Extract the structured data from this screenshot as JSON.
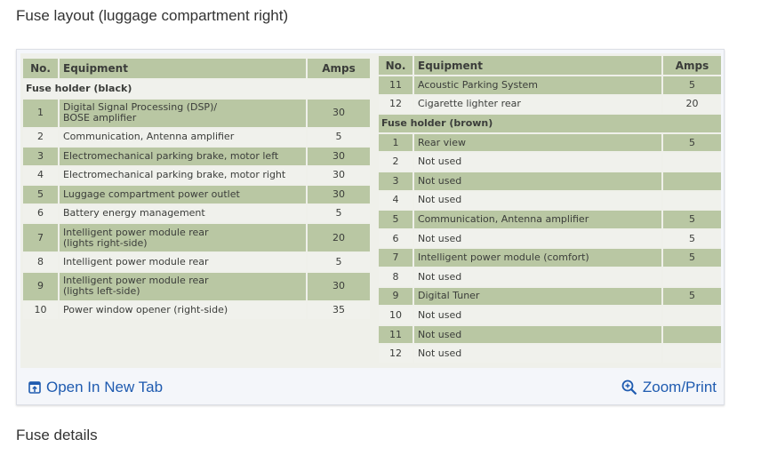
{
  "page": {
    "title": "Fuse layout (luggage compartment right)",
    "next_heading": "Fuse details"
  },
  "table_left": {
    "headers": [
      "No.",
      "Equipment",
      "Amps"
    ],
    "rows": [
      {
        "type": "group",
        "label": "Fuse holder (black)"
      },
      {
        "no": "1",
        "equipment": "Digital Signal Processing (DSP)/\nBOSE amplifier",
        "amps": "30",
        "tall": true
      },
      {
        "no": "2",
        "equipment": "Communication, Antenna amplifier",
        "amps": "5"
      },
      {
        "no": "3",
        "equipment": "Electromechanical parking brake, motor left",
        "amps": "30"
      },
      {
        "no": "4",
        "equipment": "Electromechanical parking brake, motor right",
        "amps": "30"
      },
      {
        "no": "5",
        "equipment": "Luggage compartment power outlet",
        "amps": "30"
      },
      {
        "no": "6",
        "equipment": "Battery energy management",
        "amps": "5"
      },
      {
        "no": "7",
        "equipment": "Intelligent power module rear\n(lights right-side)",
        "amps": "20",
        "tall": true
      },
      {
        "no": "8",
        "equipment": "Intelligent power module rear",
        "amps": "5"
      },
      {
        "no": "9",
        "equipment": "Intelligent power module rear\n(lights left-side)",
        "amps": "30",
        "tall": true
      },
      {
        "no": "10",
        "equipment": "Power window opener (right-side)",
        "amps": "35"
      }
    ]
  },
  "table_right": {
    "headers": [
      "No.",
      "Equipment",
      "Amps"
    ],
    "rows": [
      {
        "no": "11",
        "equipment": "Acoustic Parking System",
        "amps": "5"
      },
      {
        "no": "12",
        "equipment": "Cigarette lighter rear",
        "amps": "20"
      },
      {
        "type": "group",
        "label": "Fuse holder (brown)"
      },
      {
        "no": "1",
        "equipment": "Rear view",
        "amps": "5"
      },
      {
        "no": "2",
        "equipment": "Not used",
        "amps": ""
      },
      {
        "no": "3",
        "equipment": "Not used",
        "amps": ""
      },
      {
        "no": "4",
        "equipment": "Not used",
        "amps": ""
      },
      {
        "no": "5",
        "equipment": "Communication, Antenna amplifier",
        "amps": "5"
      },
      {
        "no": "6",
        "equipment": "Not used",
        "amps": "5"
      },
      {
        "no": "7",
        "equipment": "Intelligent power module (comfort)",
        "amps": "5"
      },
      {
        "no": "8",
        "equipment": "Not used",
        "amps": ""
      },
      {
        "no": "9",
        "equipment": "Digital Tuner",
        "amps": "5"
      },
      {
        "no": "10",
        "equipment": "Not used",
        "amps": ""
      },
      {
        "no": "11",
        "equipment": "Not used",
        "amps": ""
      },
      {
        "no": "12",
        "equipment": "Not used",
        "amps": ""
      }
    ]
  },
  "footer": {
    "open_label": "Open In New Tab",
    "open_icon": "open-new-tab-icon",
    "zoom_label": "Zoom/Print",
    "zoom_icon": "zoom-in-icon",
    "link_color": "#1f5bb0"
  },
  "colors": {
    "row_green": "#b9c7a3",
    "row_light": "#f0f1ec"
  }
}
